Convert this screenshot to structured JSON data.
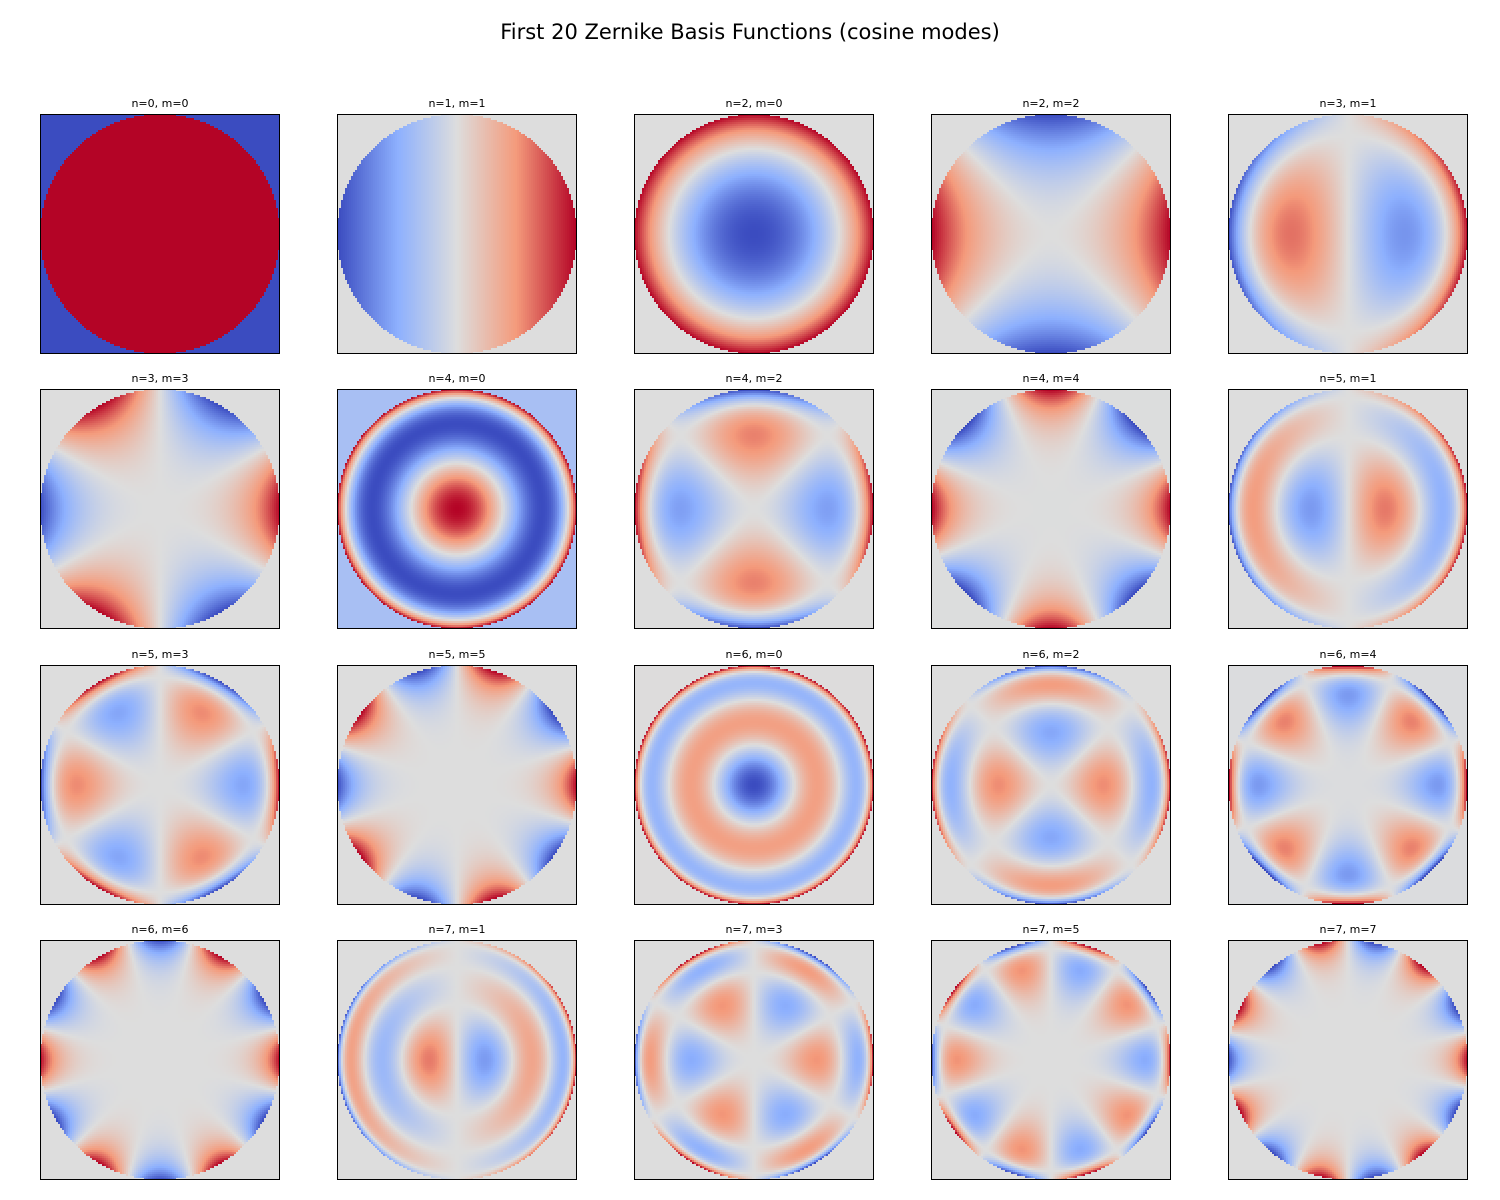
{
  "chart_data": {
    "type": "heatmap",
    "title": "First 20 Zernike Basis Functions (cosine modes)",
    "colormap": "coolwarm",
    "colors": {
      "low": "#3b4cc0",
      "mid": "#dddddd",
      "high": "#b40426",
      "background": "#ffffff"
    },
    "grid": false,
    "layout": {
      "rows": 4,
      "cols": 5
    },
    "panels": [
      {
        "title": "n=0, m=0",
        "n": 0,
        "m": 0
      },
      {
        "title": "n=1, m=1",
        "n": 1,
        "m": 1
      },
      {
        "title": "n=2, m=0",
        "n": 2,
        "m": 0
      },
      {
        "title": "n=2, m=2",
        "n": 2,
        "m": 2
      },
      {
        "title": "n=3, m=1",
        "n": 3,
        "m": 1
      },
      {
        "title": "n=3, m=3",
        "n": 3,
        "m": 3
      },
      {
        "title": "n=4, m=0",
        "n": 4,
        "m": 0
      },
      {
        "title": "n=4, m=2",
        "n": 4,
        "m": 2
      },
      {
        "title": "n=4, m=4",
        "n": 4,
        "m": 4
      },
      {
        "title": "n=5, m=1",
        "n": 5,
        "m": 1
      },
      {
        "title": "n=5, m=3",
        "n": 5,
        "m": 3
      },
      {
        "title": "n=5, m=5",
        "n": 5,
        "m": 5
      },
      {
        "title": "n=6, m=0",
        "n": 6,
        "m": 0
      },
      {
        "title": "n=6, m=2",
        "n": 6,
        "m": 2
      },
      {
        "title": "n=6, m=4",
        "n": 6,
        "m": 4
      },
      {
        "title": "n=6, m=6",
        "n": 6,
        "m": 6
      },
      {
        "title": "n=7, m=1",
        "n": 7,
        "m": 1
      },
      {
        "title": "n=7, m=3",
        "n": 7,
        "m": 3
      },
      {
        "title": "n=7, m=5",
        "n": 7,
        "m": 5
      },
      {
        "title": "n=7, m=7",
        "n": 7,
        "m": 7
      }
    ]
  }
}
